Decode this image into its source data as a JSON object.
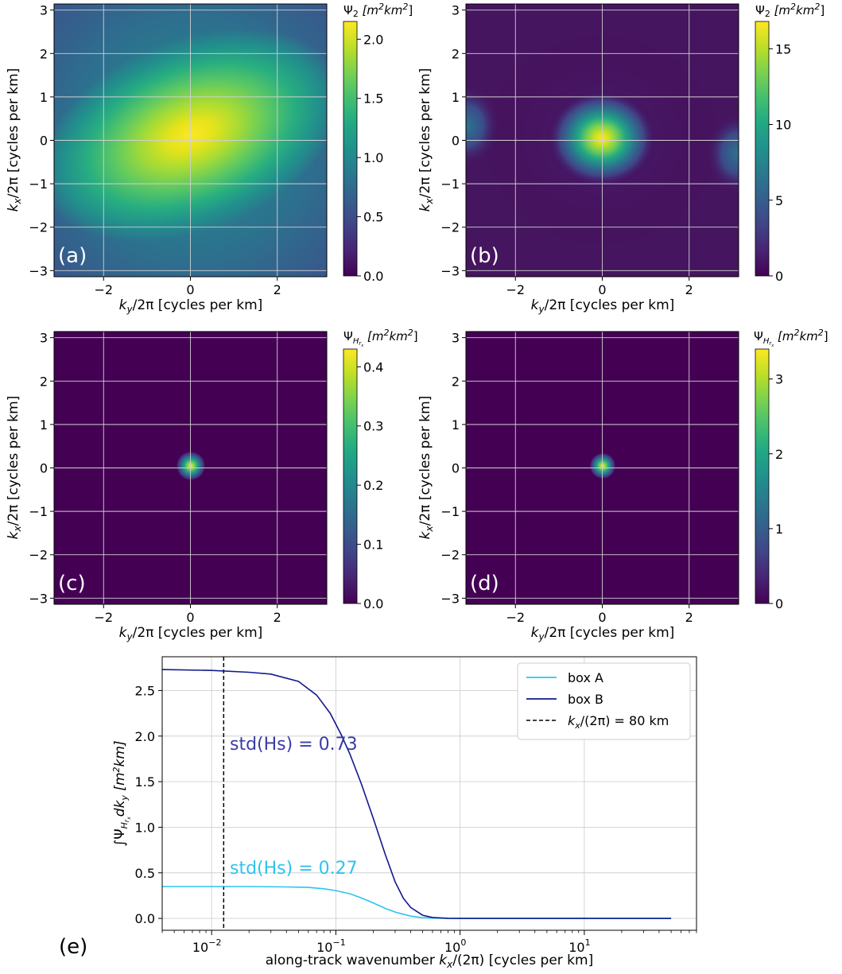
{
  "chart_data": [
    {
      "type": "heatmap",
      "panel_label": "(a)",
      "xlabel_parts": [
        "k",
        "y",
        "/2π [cycles per km]"
      ],
      "ylabel_parts": [
        "k",
        "x",
        "/2π [cycles per km]"
      ],
      "xlim": [
        -3.14,
        3.14
      ],
      "ylim": [
        -3.14,
        3.14
      ],
      "xticks": [
        -2,
        0,
        2
      ],
      "yticks": [
        -3,
        -2,
        -1,
        0,
        1,
        2,
        3
      ],
      "grid": true,
      "colorbar": {
        "label_parts": [
          "Ψ",
          "2",
          " [m",
          "2",
          "km",
          "2",
          "]"
        ],
        "label_scripts": [
          "",
          "sub",
          "",
          "sup",
          "",
          "sup",
          ""
        ],
        "range": [
          0,
          2.15
        ],
        "ticks": [
          "0.0",
          "0.5",
          "1.0",
          "1.5",
          "2.0"
        ],
        "tick_values": [
          0,
          0.5,
          1.0,
          1.5,
          2.0
        ]
      },
      "field": {
        "description": "broad elliptical peak centred at origin, elongated along +ky/+kx diagonal",
        "peak": 2.15,
        "background": 0.85
      }
    },
    {
      "type": "heatmap",
      "panel_label": "(b)",
      "xlabel_parts": [
        "k",
        "y",
        "/2π [cycles per km]"
      ],
      "ylabel_parts": [
        "k",
        "x",
        "/2π [cycles per km]"
      ],
      "xlim": [
        -3.14,
        3.14
      ],
      "ylim": [
        -3.14,
        3.14
      ],
      "xticks": [
        -2,
        0,
        2
      ],
      "yticks": [
        -3,
        -2,
        -1,
        0,
        1,
        2,
        3
      ],
      "grid": true,
      "colorbar": {
        "label_parts": [
          "Ψ",
          "2",
          " [m",
          "2",
          "km",
          "2",
          "]"
        ],
        "label_scripts": [
          "",
          "sub",
          "",
          "sup",
          "",
          "sup",
          ""
        ],
        "range": [
          0,
          16.8
        ],
        "ticks": [
          "0",
          "5",
          "10",
          "15"
        ],
        "tick_values": [
          0,
          5,
          10,
          15
        ]
      },
      "field": {
        "description": "compact peak at origin with faint side lobes at the left and right edges",
        "peak": 16.8,
        "background": 1.2
      }
    },
    {
      "type": "heatmap",
      "panel_label": "(c)",
      "xlabel_parts": [
        "k",
        "y",
        "/2π [cycles per km]"
      ],
      "ylabel_parts": [
        "k",
        "x",
        "/2π [cycles per km]"
      ],
      "xlim": [
        -3.14,
        3.14
      ],
      "ylim": [
        -3.14,
        3.14
      ],
      "xticks": [
        -2,
        0,
        2
      ],
      "yticks": [
        -3,
        -2,
        -1,
        0,
        1,
        2,
        3
      ],
      "grid": true,
      "colorbar": {
        "label_parts": [
          "Ψ",
          "H",
          "r",
          "x",
          " [m",
          "2",
          "km",
          "2",
          "]"
        ],
        "label_scripts": [
          "",
          "sub",
          "sub2",
          "sub3",
          "",
          "sup",
          "",
          "sup",
          ""
        ],
        "range": [
          0,
          0.43
        ],
        "ticks": [
          "0.0",
          "0.1",
          "0.2",
          "0.3",
          "0.4"
        ],
        "tick_values": [
          0,
          0.1,
          0.2,
          0.3,
          0.4
        ]
      },
      "field": {
        "description": "very narrow spot at origin",
        "peak": 0.43,
        "background": 0
      }
    },
    {
      "type": "heatmap",
      "panel_label": "(d)",
      "xlabel_parts": [
        "k",
        "y",
        "/2π [cycles per km]"
      ],
      "ylabel_parts": [
        "k",
        "x",
        "/2π [cycles per km]"
      ],
      "xlim": [
        -3.14,
        3.14
      ],
      "ylim": [
        -3.14,
        3.14
      ],
      "xticks": [
        -2,
        0,
        2
      ],
      "yticks": [
        -3,
        -2,
        -1,
        0,
        1,
        2,
        3
      ],
      "grid": true,
      "colorbar": {
        "label_parts": [
          "Ψ",
          "H",
          "r",
          "x",
          " [m",
          "2",
          "km",
          "2",
          "]"
        ],
        "label_scripts": [
          "",
          "sub",
          "sub2",
          "sub3",
          "",
          "sup",
          "",
          "sup",
          ""
        ],
        "range": [
          0,
          3.4
        ],
        "ticks": [
          "0",
          "1",
          "2",
          "3"
        ],
        "tick_values": [
          0,
          1,
          2,
          3
        ]
      },
      "field": {
        "description": "very narrow spot at origin",
        "peak": 3.4,
        "background": 0
      }
    },
    {
      "type": "line",
      "panel_label": "(e)",
      "xscale": "log",
      "xlim": [
        0.004,
        80
      ],
      "ylim": [
        -0.13,
        2.87
      ],
      "xticks": [
        0.01,
        0.1,
        1,
        10
      ],
      "xtick_labels": [
        [
          "10",
          "−2"
        ],
        [
          "10",
          "−1"
        ],
        [
          "10",
          "0"
        ],
        [
          "10",
          "1"
        ]
      ],
      "yticks": [
        "0.0",
        "0.5",
        "1.0",
        "1.5",
        "2.0",
        "2.5"
      ],
      "ytick_values": [
        0,
        0.5,
        1.0,
        1.5,
        2.0,
        2.5
      ],
      "xlabel_parts": [
        "along-track wavenumber ",
        "k",
        "x",
        "/(2π) [cycles per km]"
      ],
      "ylabel_parts": [
        "∫Ψ",
        "H",
        "r",
        "x",
        "dk",
        "y",
        " [m",
        "2",
        "km]"
      ],
      "grid": true,
      "legend_placement": "top-right",
      "legend": [
        {
          "label_parts": [
            "box A"
          ],
          "color": "#2cc4f0",
          "style": "solid"
        },
        {
          "label_parts": [
            "box B"
          ],
          "color": "#111a8c",
          "style": "solid"
        },
        {
          "label_parts": [
            "k",
            "x",
            "/(2π) = 80 km"
          ],
          "color": "#000000",
          "style": "dashed"
        }
      ],
      "series": [
        {
          "name": "box A",
          "color": "#2cc4f0",
          "x": [
            0.004,
            0.01,
            0.02,
            0.04,
            0.06,
            0.08,
            0.1,
            0.13,
            0.16,
            0.2,
            0.25,
            0.3,
            0.4,
            0.5,
            0.6,
            0.8,
            1,
            2,
            5,
            10,
            20,
            50
          ],
          "y": [
            0.35,
            0.35,
            0.35,
            0.345,
            0.34,
            0.325,
            0.305,
            0.27,
            0.225,
            0.17,
            0.11,
            0.07,
            0.025,
            0.008,
            0.003,
            0.001,
            0,
            0,
            0,
            0,
            0,
            0
          ]
        },
        {
          "name": "box B",
          "color": "#111a8c",
          "x": [
            0.004,
            0.01,
            0.02,
            0.03,
            0.05,
            0.07,
            0.09,
            0.11,
            0.13,
            0.16,
            0.2,
            0.25,
            0.3,
            0.35,
            0.4,
            0.5,
            0.6,
            0.8,
            1,
            2,
            5,
            10,
            20,
            50
          ],
          "y": [
            2.73,
            2.72,
            2.7,
            2.68,
            2.6,
            2.45,
            2.25,
            2.02,
            1.8,
            1.48,
            1.1,
            0.7,
            0.4,
            0.22,
            0.12,
            0.035,
            0.01,
            0.002,
            0,
            0,
            0,
            0,
            0,
            0
          ]
        }
      ],
      "vline": {
        "x": 0.0125,
        "color": "#000000",
        "style": "dashed"
      },
      "annotations": [
        {
          "text": "std(Hs) = 0.73",
          "x": 0.014,
          "y": 1.85,
          "color": "#3b3ba8"
        },
        {
          "text": "std(Hs) = 0.27",
          "x": 0.014,
          "y": 0.49,
          "color": "#2cc4f0"
        }
      ]
    }
  ]
}
